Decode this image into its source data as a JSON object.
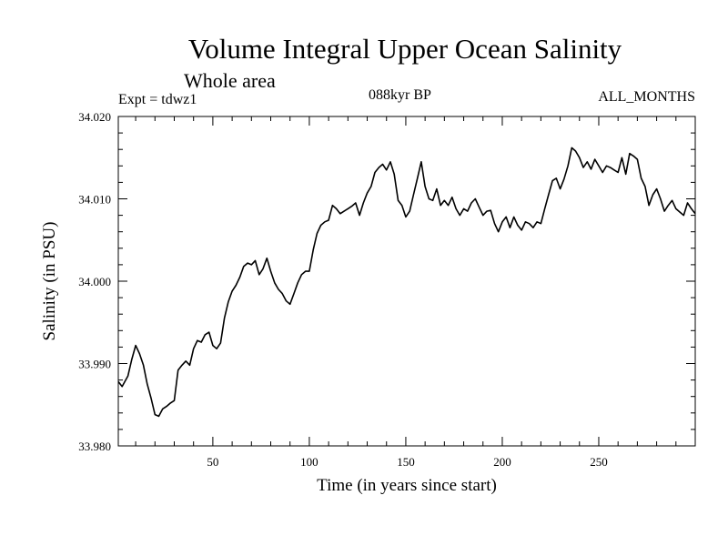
{
  "header": {
    "title": "Volume Integral Upper Ocean Salinity",
    "subtitle": "Whole area",
    "expt": "Expt = tdwz1",
    "center_label": "088kyr BP",
    "right_label": "ALL_MONTHS"
  },
  "chart_data": {
    "type": "line",
    "title": "Volume Integral Upper Ocean Salinity",
    "subtitle": "Whole area",
    "xlabel": "Time (in years since start)",
    "ylabel": "Salinity (in PSU)",
    "xlim": [
      1,
      300
    ],
    "ylim": [
      33.98,
      34.02
    ],
    "x_ticks": [
      50,
      100,
      150,
      200,
      250
    ],
    "x_tick_labels": [
      "50",
      "100",
      "150",
      "200",
      "250"
    ],
    "y_ticks": [
      33.98,
      33.99,
      34.0,
      34.01,
      34.02
    ],
    "y_tick_labels": [
      "33.980",
      "33.990",
      "34.000",
      "34.010",
      "34.020"
    ],
    "grid": false,
    "color": "#000000",
    "series": [
      {
        "x": [
          1,
          3,
          6,
          8,
          10,
          12,
          14,
          16,
          18,
          20,
          22,
          24,
          26,
          28,
          30,
          32,
          34,
          36,
          38,
          40,
          42,
          44,
          46,
          48,
          50,
          52,
          54,
          56,
          58,
          60,
          62,
          64,
          66,
          68,
          70,
          72,
          74,
          76,
          78,
          80,
          82,
          84,
          86,
          88,
          90,
          92,
          94,
          96,
          98,
          100,
          102,
          104,
          106,
          108,
          110,
          112,
          114,
          116,
          118,
          120,
          122,
          124,
          126,
          128,
          130,
          132,
          134,
          136,
          138,
          140,
          142,
          144,
          146,
          148,
          150,
          152,
          154,
          156,
          158,
          160,
          162,
          164,
          166,
          168,
          170,
          172,
          174,
          176,
          178,
          180,
          182,
          184,
          186,
          188,
          190,
          192,
          194,
          196,
          198,
          200,
          202,
          204,
          206,
          208,
          210,
          212,
          214,
          216,
          218,
          220,
          222,
          224,
          226,
          228,
          230,
          232,
          234,
          236,
          238,
          240,
          242,
          244,
          246,
          248,
          250,
          252,
          254,
          256,
          258,
          260,
          262,
          264,
          266,
          268,
          270,
          272,
          274,
          276,
          278,
          280,
          282,
          284,
          286,
          288,
          290,
          292,
          294,
          296,
          298,
          300
        ],
        "y": [
          33.9878,
          33.9872,
          33.9885,
          33.9905,
          33.9922,
          33.9912,
          33.9898,
          33.9875,
          33.9858,
          33.9838,
          33.9836,
          33.9845,
          33.9848,
          33.9852,
          33.9855,
          33.9892,
          33.9898,
          33.9903,
          33.9898,
          33.9918,
          33.9928,
          33.9926,
          33.9935,
          33.9938,
          33.9922,
          33.9918,
          33.9925,
          33.9955,
          33.9975,
          33.9988,
          33.9995,
          34.0005,
          34.0018,
          34.0022,
          34.002,
          34.0025,
          34.0008,
          34.0015,
          34.0028,
          34.0012,
          33.9998,
          33.999,
          33.9985,
          33.9976,
          33.9972,
          33.9985,
          33.9998,
          34.0008,
          34.0012,
          34.0012,
          34.0038,
          34.0058,
          34.0068,
          34.0072,
          34.0074,
          34.0092,
          34.0088,
          34.0082,
          34.0085,
          34.0088,
          34.0091,
          34.0095,
          34.008,
          34.0095,
          34.0107,
          34.0115,
          34.0132,
          34.0138,
          34.0142,
          34.0135,
          34.0145,
          34.013,
          34.0098,
          34.0092,
          34.0078,
          34.0085,
          34.0105,
          34.0125,
          34.0145,
          34.0115,
          34.01,
          34.0098,
          34.0112,
          34.0092,
          34.0098,
          34.0092,
          34.0102,
          34.0088,
          34.008,
          34.0088,
          34.0085,
          34.0095,
          34.01,
          34.009,
          34.008,
          34.0085,
          34.0086,
          34.007,
          34.006,
          34.0072,
          34.0078,
          34.0065,
          34.0078,
          34.0068,
          34.0062,
          34.0072,
          34.007,
          34.0065,
          34.0072,
          34.007,
          34.0088,
          34.0105,
          34.0122,
          34.0125,
          34.0112,
          34.0124,
          34.014,
          34.0162,
          34.0158,
          34.015,
          34.0138,
          34.0145,
          34.0136,
          34.0148,
          34.014,
          34.0132,
          34.014,
          34.0138,
          34.0135,
          34.0132,
          34.015,
          34.013,
          34.0155,
          34.0152,
          34.0148,
          34.0125,
          34.0115,
          34.0092,
          34.0105,
          34.0112,
          34.01,
          34.0085,
          34.0092,
          34.0098,
          34.0088,
          34.0084,
          34.008,
          34.0095,
          34.0088,
          34.0082
        ]
      }
    ]
  }
}
